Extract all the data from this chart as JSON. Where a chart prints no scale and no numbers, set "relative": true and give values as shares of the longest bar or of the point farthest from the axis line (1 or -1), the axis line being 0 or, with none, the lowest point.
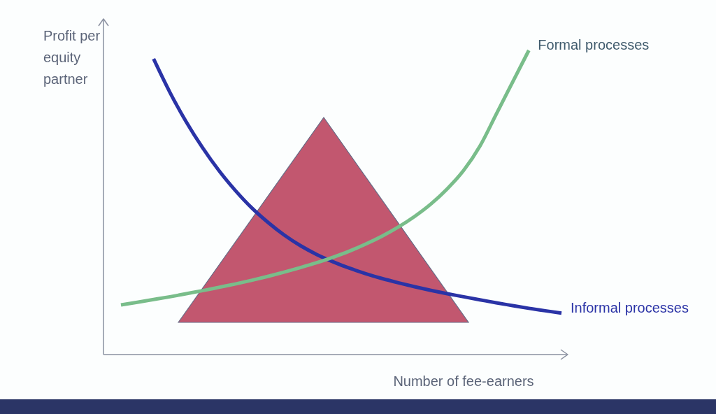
{
  "chart_data": {
    "type": "line",
    "relative": true,
    "xlabel": "Number of fee-earners",
    "ylabel": "Profit per equity partner",
    "categories": [
      null,
      null,
      null,
      null,
      null,
      null,
      null,
      null,
      null,
      null,
      null,
      null,
      null,
      null,
      null,
      null,
      null,
      null,
      null,
      null,
      null,
      null,
      null,
      null,
      null,
      null,
      null,
      null
    ],
    "series": [
      {
        "name": "Informal processes",
        "color": "#2a33a6",
        "values": [
          null,
          null,
          0.972,
          0.862,
          0.765,
          0.68,
          0.605,
          0.54,
          0.483,
          0.435,
          0.393,
          0.358,
          0.329,
          0.305,
          0.284,
          0.266,
          0.25,
          0.236,
          0.223,
          0.211,
          0.2,
          0.19,
          0.18,
          0.17,
          0.161,
          0.152,
          0.144,
          0.136
        ]
      },
      {
        "name": "Formal processes",
        "color": "#79bd8a",
        "values": [
          0.163,
          0.172,
          0.181,
          0.19,
          0.2,
          0.21,
          0.221,
          0.232,
          0.244,
          0.257,
          0.271,
          0.286,
          0.302,
          0.32,
          0.34,
          0.363,
          0.389,
          0.419,
          0.454,
          0.495,
          0.545,
          0.605,
          0.685,
          0.79,
          0.895,
          1.0,
          null,
          null
        ]
      }
    ]
  }
}
